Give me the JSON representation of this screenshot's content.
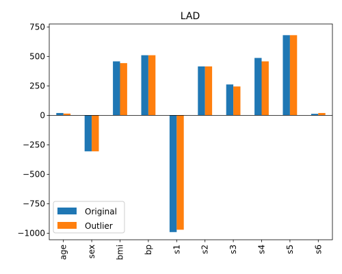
{
  "chart_data": {
    "type": "bar",
    "title": "LAD",
    "xlabel": "",
    "ylabel": "",
    "categories": [
      "age",
      "sex",
      "bmi",
      "bp",
      "s1",
      "s2",
      "s3",
      "s4",
      "s5",
      "s6"
    ],
    "series": [
      {
        "name": "Original",
        "color": "#1f77b4",
        "values": [
          20,
          -305,
          458,
          510,
          -990,
          415,
          262,
          487,
          680,
          13
        ]
      },
      {
        "name": "Outlier",
        "color": "#ff7f0e",
        "values": [
          15,
          -305,
          443,
          510,
          -970,
          415,
          245,
          458,
          680,
          20
        ]
      }
    ],
    "ylim": [
      -1055,
      775
    ],
    "yticks": [
      -1000,
      -750,
      -500,
      -250,
      0,
      250,
      500,
      750
    ],
    "grid": false,
    "legend_position": "lower-left"
  }
}
